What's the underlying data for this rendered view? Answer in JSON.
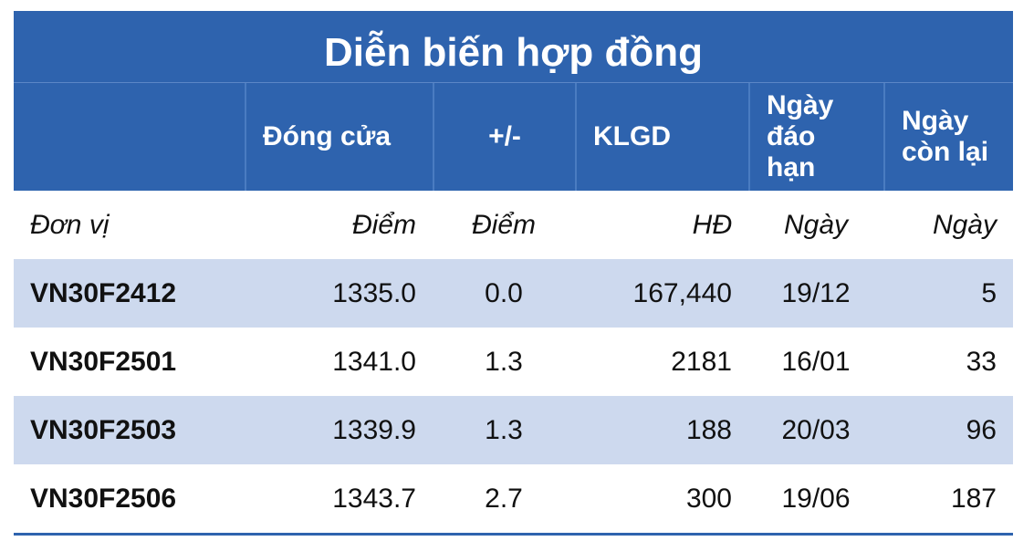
{
  "title": "Diễn biến hợp đồng",
  "header": [
    "",
    "Đóng cửa",
    "+/-",
    "KLGD",
    "Ngày đáo hạn",
    "Ngày còn lại"
  ],
  "units": [
    "Đơn vị",
    "Điểm",
    "Điểm",
    "HĐ",
    "Ngày",
    "Ngày"
  ],
  "rows": [
    [
      "VN30F2412",
      "1335.0",
      "0.0",
      "167,440",
      "19/12",
      "5"
    ],
    [
      "VN30F2501",
      "1341.0",
      "1.3",
      "2181",
      "16/01",
      "33"
    ],
    [
      "VN30F2503",
      "1339.9",
      "1.3",
      "188",
      "20/03",
      "96"
    ],
    [
      "VN30F2506",
      "1343.7",
      "2.7",
      "300",
      "19/06",
      "187"
    ]
  ]
}
